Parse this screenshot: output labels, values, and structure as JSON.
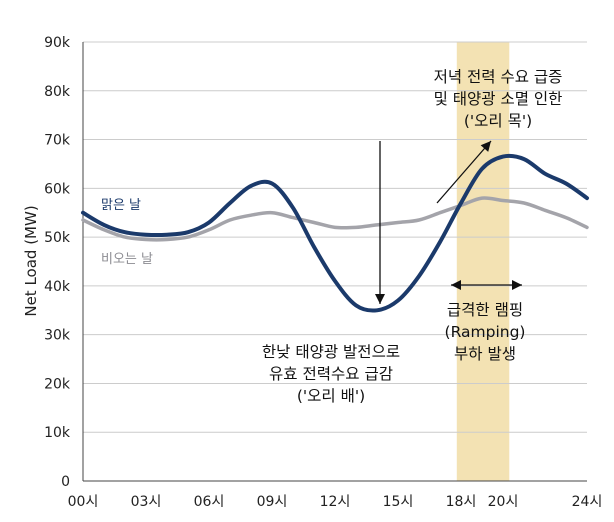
{
  "chart_data": {
    "type": "line",
    "title": "",
    "xlabel": "",
    "ylabel": "Net Load (MW)",
    "x_ticks": [
      "00시",
      "03시",
      "06시",
      "09시",
      "12시",
      "15시",
      "18시",
      "20시",
      "24시"
    ],
    "x_tick_hours": [
      0,
      3,
      6,
      9,
      12,
      15,
      18,
      20,
      24
    ],
    "xlim": [
      0,
      24
    ],
    "y_ticks": [
      "0",
      "10k",
      "20k",
      "30k",
      "40k",
      "50k",
      "60k",
      "70k",
      "80k",
      "90k"
    ],
    "ylim": [
      0,
      90000
    ],
    "series": [
      {
        "name": "맑은 날",
        "color": "#1b3a6b",
        "x": [
          0,
          1,
          2,
          3,
          4,
          5,
          6,
          7,
          8,
          9,
          10,
          11,
          12,
          13,
          14,
          15,
          16,
          17,
          18,
          19,
          20,
          21,
          22,
          23,
          24
        ],
        "y": [
          55000,
          52500,
          51000,
          50500,
          50500,
          51000,
          53000,
          57000,
          60500,
          61000,
          56000,
          48000,
          41000,
          36000,
          35000,
          37000,
          42000,
          49000,
          57000,
          64000,
          66500,
          66000,
          63000,
          61000,
          58000
        ]
      },
      {
        "name": "비오는 날",
        "color": "#a4a4aa",
        "x": [
          0,
          1,
          2,
          3,
          4,
          5,
          6,
          7,
          8,
          9,
          10,
          11,
          12,
          13,
          14,
          15,
          16,
          17,
          18,
          19,
          20,
          21,
          22,
          23,
          24
        ],
        "y": [
          53500,
          51500,
          50000,
          49500,
          49500,
          50000,
          51500,
          53500,
          54500,
          55000,
          54000,
          53000,
          52000,
          52000,
          52500,
          53000,
          53500,
          55000,
          56500,
          58000,
          57500,
          57000,
          55500,
          54000,
          52000
        ]
      }
    ],
    "highlight_band": {
      "x_from": 17.8,
      "x_to": 20.3,
      "color": "#f3e2b3"
    },
    "annotations": {
      "duck_neck": [
        "저녁 전력 수요 급증",
        "및 태양광 소멸 인한",
        "('오리 목')"
      ],
      "ramping": [
        "급격한 램핑",
        "(Ramping)",
        "부하 발생"
      ],
      "duck_belly": [
        "한낮 태양광 발전으로",
        "유효 전력수요 급감",
        "('오리 배')"
      ]
    }
  }
}
